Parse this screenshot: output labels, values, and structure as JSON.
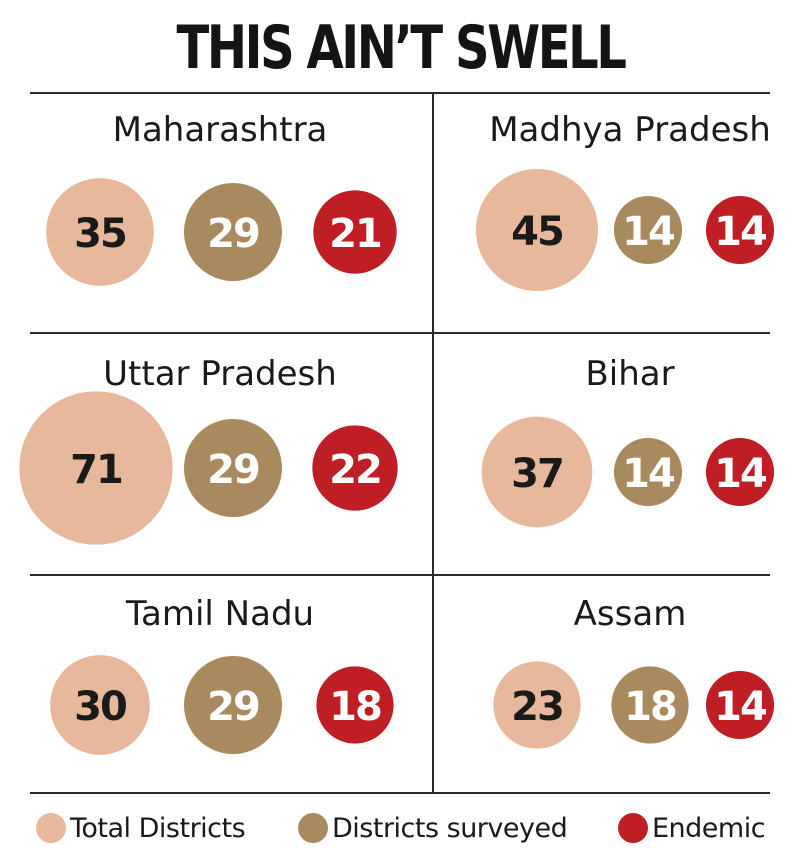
{
  "title": "THIS AIN’T SWELL",
  "colors": {
    "total": "#e8b89c",
    "surveyed": "#a98a5e",
    "endemic": "#bf1e24"
  },
  "chart_data": {
    "type": "bubble",
    "title": "THIS AIN’T SWELL",
    "legend": {
      "position": "bottom",
      "entries": [
        "Total Districts",
        "Districts surveyed",
        "Endemic"
      ]
    },
    "series_names": [
      "Total Districts",
      "Districts surveyed",
      "Endemic"
    ],
    "panels": [
      {
        "state": "Maharashtra",
        "values": [
          35,
          29,
          21
        ]
      },
      {
        "state": "Madhya Pradesh",
        "values": [
          45,
          14,
          14
        ]
      },
      {
        "state": "Uttar Pradesh",
        "values": [
          71,
          29,
          22
        ]
      },
      {
        "state": "Bihar",
        "values": [
          37,
          14,
          14
        ]
      },
      {
        "state": "Tamil Nadu",
        "values": [
          30,
          29,
          18
        ]
      },
      {
        "state": "Assam",
        "values": [
          23,
          18,
          14
        ]
      }
    ]
  }
}
